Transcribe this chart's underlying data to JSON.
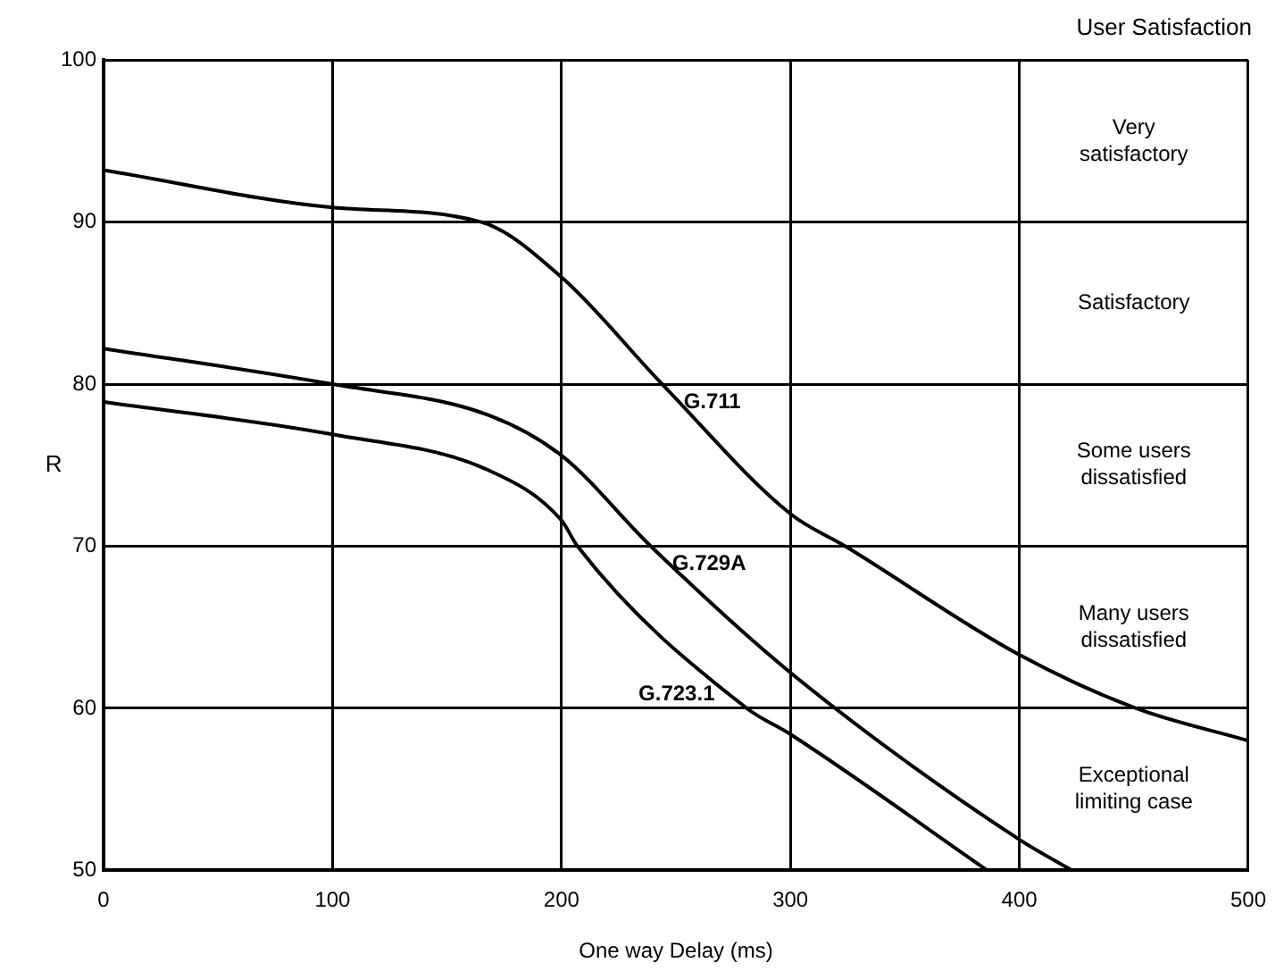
{
  "chart_data": {
    "type": "line",
    "title": "User Satisfaction",
    "xlabel": "One way Delay (ms)",
    "ylabel": "R",
    "xlim": [
      0,
      500
    ],
    "xticks": [
      0,
      100,
      200,
      300,
      400,
      500
    ],
    "ylim": [
      50,
      100
    ],
    "yticks": [
      50,
      60,
      70,
      80,
      90,
      100
    ],
    "grid": true,
    "legend": false,
    "marker": "none",
    "line_style": "solid",
    "series": [
      {
        "name": "G.711",
        "color": "#000000",
        "x": [
          0,
          100,
          165,
          200,
          244,
          300,
          324,
          400,
          451,
          500
        ],
        "values": [
          93.2,
          90.9,
          90.0,
          86.6,
          80.0,
          72.0,
          70.0,
          63.3,
          60.0,
          58.0
        ]
      },
      {
        "name": "G.729A",
        "color": "#000000",
        "x": [
          0,
          100,
          168,
          200,
          239,
          300,
          400,
          423
        ],
        "values": [
          82.2,
          80.0,
          78.1,
          75.6,
          70.0,
          62.2,
          51.9,
          50.0
        ]
      },
      {
        "name": "G.723.1",
        "color": "#000000",
        "x": [
          0,
          100,
          168,
          200,
          207,
          281,
          300,
          386
        ],
        "values": [
          78.9,
          76.9,
          74.7,
          71.6,
          70.0,
          60.0,
          58.4,
          50.0
        ]
      }
    ],
    "annotations": [
      "Very satisfactory",
      "Satisfactory",
      "Some users dissatisfied",
      "Many users dissatisfied",
      "Exceptional limiting case"
    ]
  }
}
